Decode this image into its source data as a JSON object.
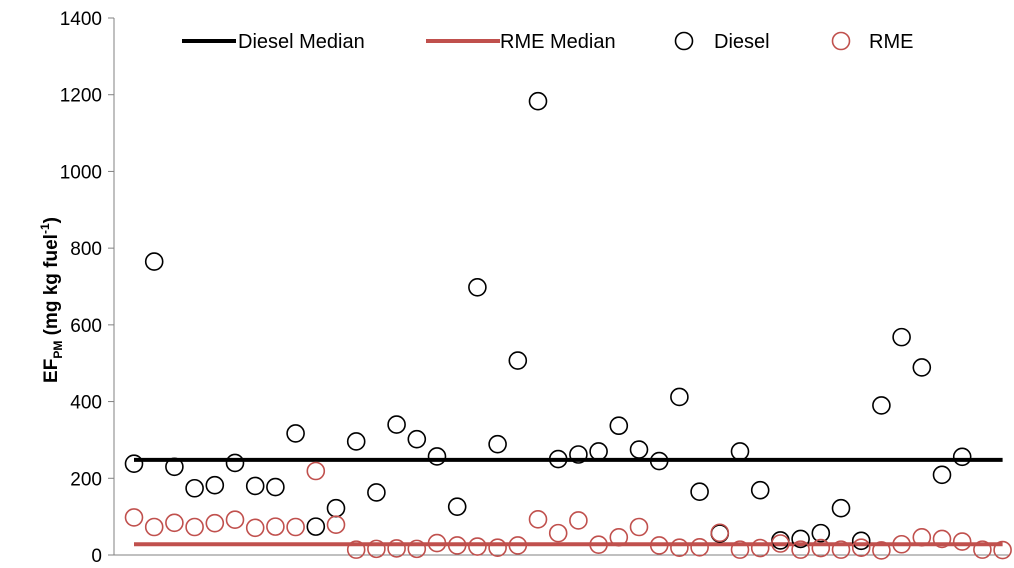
{
  "chart_data": {
    "type": "scatter",
    "title": "",
    "ylabel": {
      "main": "EF",
      "sub": "PM",
      "rest": " (mg kg fuel",
      "sup": "-1",
      "close": ")"
    },
    "ylim": [
      0,
      1400
    ],
    "yticks": [
      0,
      200,
      400,
      600,
      800,
      1000,
      1200,
      1400
    ],
    "grid": false,
    "legend_position": "top",
    "colors": {
      "diesel": "#000000",
      "rme": "#c0504d"
    },
    "legend": [
      {
        "key": "diesel_median",
        "label": "Diesel Median",
        "kind": "line"
      },
      {
        "key": "rme_median",
        "label": "RME Median",
        "kind": "line"
      },
      {
        "key": "diesel",
        "label": "Diesel",
        "kind": "marker"
      },
      {
        "key": "rme",
        "label": "RME",
        "kind": "marker"
      }
    ],
    "diesel_median": 248,
    "rme_median": 28,
    "series": [
      {
        "name": "Diesel",
        "key": "diesel",
        "values": [
          238,
          765,
          230,
          174,
          182,
          240,
          180,
          177,
          317,
          74,
          122,
          296,
          163,
          340,
          302,
          257,
          126,
          698,
          289,
          507,
          1183,
          250,
          262,
          270,
          337,
          275,
          245,
          412,
          165,
          56,
          270,
          169,
          38,
          42,
          57,
          122,
          37,
          390,
          568,
          489,
          209,
          256
        ]
      },
      {
        "name": "RME",
        "key": "rme",
        "values": [
          98,
          73,
          84,
          73,
          83,
          92,
          71,
          74,
          73,
          219,
          79,
          14,
          16,
          17,
          16,
          31,
          25,
          22,
          19,
          25,
          93,
          57,
          90,
          27,
          46,
          73,
          25,
          19,
          20,
          58,
          14,
          18,
          30,
          14,
          18,
          14,
          19,
          12,
          28,
          46,
          42,
          35,
          14,
          13
        ]
      }
    ]
  }
}
